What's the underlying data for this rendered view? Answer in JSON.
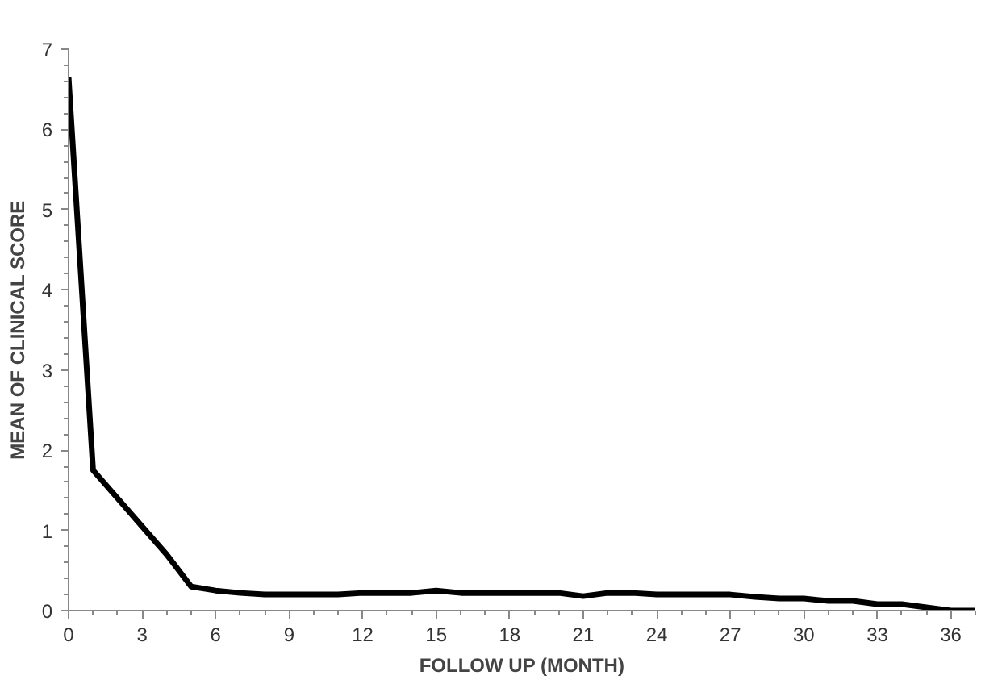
{
  "chart_data": {
    "type": "line",
    "xlabel": "FOLLOW UP (MONTH)",
    "ylabel": "MEAN OF CLINICAL SCORE",
    "x": [
      0,
      1,
      2,
      3,
      4,
      5,
      6,
      7,
      8,
      9,
      10,
      11,
      12,
      13,
      14,
      15,
      16,
      17,
      18,
      19,
      20,
      21,
      22,
      23,
      24,
      25,
      26,
      27,
      28,
      29,
      30,
      31,
      32,
      33,
      34,
      35,
      36,
      37
    ],
    "series": [
      {
        "color": "#000000",
        "values": [
          6.65,
          1.75,
          1.4,
          1.05,
          0.7,
          0.3,
          0.25,
          0.22,
          0.2,
          0.2,
          0.2,
          0.2,
          0.22,
          0.22,
          0.22,
          0.25,
          0.22,
          0.22,
          0.22,
          0.22,
          0.22,
          0.18,
          0.22,
          0.22,
          0.2,
          0.2,
          0.2,
          0.2,
          0.17,
          0.15,
          0.15,
          0.12,
          0.12,
          0.08,
          0.08,
          0.04,
          0,
          0
        ]
      }
    ],
    "xlim": [
      0,
      37
    ],
    "xticks": [
      0,
      3,
      6,
      9,
      12,
      15,
      18,
      21,
      24,
      27,
      30,
      33,
      36
    ],
    "ylim": [
      0,
      7
    ],
    "yticks": [
      0,
      1,
      2,
      3,
      4,
      5,
      6,
      7
    ],
    "grid": false,
    "marker": "none",
    "line_style": "solid"
  }
}
